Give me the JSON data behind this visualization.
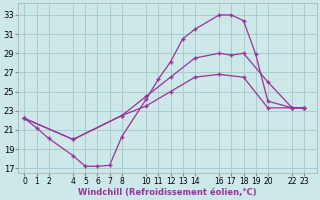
{
  "xlabel": "Windchill (Refroidissement éolien,°C)",
  "bg_color": "#cce8e8",
  "grid_color": "#aacccc",
  "line_color": "#993399",
  "xlim": [
    -0.5,
    24.0
  ],
  "ylim": [
    16.5,
    34.2
  ],
  "xtick_positions": [
    0,
    1,
    2,
    4,
    5,
    6,
    7,
    8,
    10,
    11,
    12,
    13,
    14,
    16,
    17,
    18,
    19,
    20,
    22,
    23
  ],
  "xtick_labels": [
    "0",
    "1",
    "2",
    "4",
    "5",
    "6",
    "7",
    "8",
    "10",
    "11",
    "12",
    "13",
    "14",
    "16",
    "17",
    "18",
    "19",
    "20",
    "22",
    "23"
  ],
  "ytick_positions": [
    17,
    19,
    21,
    23,
    25,
    27,
    29,
    31,
    33
  ],
  "ytick_labels": [
    "17",
    "19",
    "21",
    "23",
    "25",
    "27",
    "29",
    "31",
    "33"
  ],
  "line1_x": [
    0,
    1,
    2,
    4,
    5,
    6,
    7,
    8,
    10,
    11,
    12,
    13,
    14,
    16,
    17,
    18,
    19,
    20,
    22,
    23
  ],
  "line1_y": [
    22.2,
    21.2,
    20.1,
    18.3,
    17.2,
    17.2,
    17.3,
    20.3,
    24.2,
    26.3,
    28.1,
    30.5,
    31.5,
    33.0,
    33.0,
    32.4,
    28.9,
    24.0,
    23.3,
    23.3
  ],
  "line2_x": [
    0,
    4,
    8,
    10,
    12,
    14,
    16,
    17,
    18,
    20,
    22,
    23
  ],
  "line2_y": [
    22.2,
    20.0,
    22.5,
    24.5,
    26.5,
    28.5,
    29.0,
    28.8,
    29.0,
    26.0,
    23.3,
    23.3
  ],
  "line3_x": [
    0,
    4,
    8,
    10,
    12,
    14,
    16,
    18,
    20,
    22,
    23
  ],
  "line3_y": [
    22.2,
    20.0,
    22.5,
    23.5,
    25.0,
    26.5,
    26.8,
    26.5,
    23.3,
    23.3,
    23.3
  ]
}
